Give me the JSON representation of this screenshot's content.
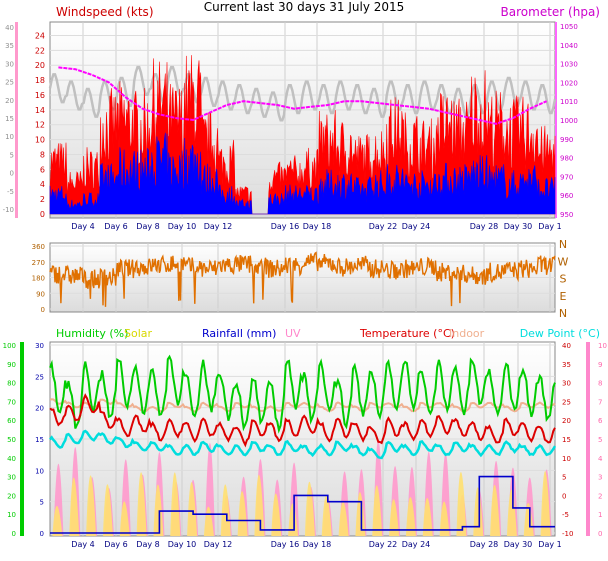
{
  "title": "Current last 30 days 31 July 2015",
  "x_ticks": [
    "Day 4",
    "Day 6",
    "Day 8",
    "Day 10",
    "Day 12",
    "Day 16",
    "Day 18",
    "Day 22",
    "Day 24",
    "Day 28",
    "Day 30",
    "Day 1"
  ],
  "chart_data": [
    {
      "type": "line",
      "name_label": "",
      "left_axis_label": "Windspeed (kts)",
      "right_axis_label": "Barometer (hpa)",
      "colors": {
        "gust": "#ff0000",
        "avg": "#0000ff",
        "direction_avg": "#c0c0c0",
        "barometer": "#ff00ff",
        "left_axis": "#cc0000",
        "right_axis": "#cc00cc"
      },
      "left_ticks_kts": [
        24,
        22,
        20,
        18,
        16,
        14,
        12,
        10,
        8,
        6,
        4,
        2,
        0
      ],
      "left_ticks_outer": [
        40,
        35,
        30,
        25,
        20,
        15,
        10,
        5,
        0,
        -5,
        -10
      ],
      "right_ticks_hpa": [
        1050,
        1040,
        1030,
        1020,
        1010,
        1000,
        990,
        980,
        970,
        960,
        950
      ],
      "ylim_kts": [
        0,
        25
      ],
      "ylim_hpa": [
        950,
        1050
      ],
      "barometer_hpa": [
        1028,
        1027,
        1024,
        1020,
        1012,
        1006,
        1003,
        1001,
        1000,
        1004,
        1008,
        1010,
        1009,
        1008,
        1006,
        1007,
        1008,
        1010,
        1010,
        1009,
        1008,
        1007,
        1006,
        1004,
        1002,
        1000,
        998,
        1001,
        1006,
        1010
      ],
      "gust_kts_daily_max": [
        10,
        6,
        9,
        17,
        18,
        17,
        21,
        18,
        22,
        14,
        10,
        4,
        0,
        7,
        8,
        9,
        14,
        13,
        11,
        12,
        16,
        14,
        13,
        17,
        16,
        20,
        17,
        16,
        16,
        12
      ],
      "avg_kts_daily_max": [
        4,
        2,
        3,
        7,
        9,
        9,
        11,
        9,
        11,
        7,
        4,
        2,
        0,
        3,
        4,
        4,
        6,
        6,
        5,
        6,
        7,
        6,
        6,
        7,
        7,
        8,
        7,
        6,
        7,
        5
      ],
      "temp_c_outer_band": [
        24,
        22,
        20,
        22,
        23,
        26,
        24,
        26,
        24,
        23,
        22,
        21,
        20,
        19,
        21,
        22,
        21,
        22,
        21,
        20,
        22,
        21,
        22,
        21,
        20,
        21,
        22,
        23,
        22,
        21
      ]
    },
    {
      "type": "line",
      "name_label": "",
      "compass_labels": [
        "N",
        "W",
        "S",
        "E",
        "N"
      ],
      "left_ticks_deg": [
        360,
        270,
        180,
        90,
        0
      ],
      "colors": {
        "direction": "#e07000"
      },
      "direction_deg_daily": [
        200,
        190,
        170,
        180,
        230,
        240,
        250,
        260,
        240,
        230,
        250,
        255,
        240,
        230,
        250,
        270,
        260,
        240,
        250,
        230,
        220,
        230,
        240,
        210,
        200,
        190,
        210,
        220,
        230,
        250
      ]
    },
    {
      "type": "line",
      "labels": {
        "humidity": "Humidity (%)",
        "solar": "Solar",
        "rainfall": "Rainfall (mm)",
        "uv": "UV",
        "temperature": "Temperature (°C)",
        "indoor": "Indoor",
        "dew_point": "Dew Point (°C)"
      },
      "colors": {
        "humidity": "#00cc00",
        "solar": "#d8d800",
        "rainfall": "#0000cc",
        "uv": "#ff88cc",
        "temperature": "#dd0000",
        "indoor": "#f0b090",
        "dew_point": "#00dddd"
      },
      "left_ticks_humidity": [
        100,
        90,
        80,
        70,
        60,
        50,
        40,
        30,
        20,
        10,
        0
      ],
      "left_ticks_rain": [
        30,
        25,
        20,
        15,
        10,
        5,
        0
      ],
      "right_ticks_temp": [
        40,
        35,
        30,
        25,
        20,
        15,
        10,
        5,
        0,
        -5,
        -10
      ],
      "right_ticks_uv": [
        10,
        9,
        8,
        7,
        6,
        5,
        4,
        3,
        2,
        1,
        0
      ],
      "humidity_pct_daily_max": [
        88,
        80,
        90,
        85,
        92,
        88,
        86,
        94,
        84,
        90,
        86,
        80,
        82,
        80,
        92,
        84,
        90,
        82,
        88,
        86,
        90,
        92,
        86,
        90,
        88,
        92,
        86,
        90,
        88,
        84
      ],
      "temperature_c_daily": [
        21,
        22,
        24,
        20,
        18,
        19,
        17,
        18,
        17,
        18,
        17,
        16,
        18,
        17,
        18,
        19,
        17,
        18,
        17,
        16,
        18,
        17,
        18,
        19,
        18,
        17,
        16,
        18,
        17,
        16
      ],
      "dew_point_c_daily": [
        14,
        15,
        16,
        15,
        14,
        13,
        13,
        12,
        12,
        13,
        12,
        12,
        13,
        12,
        13,
        12,
        12,
        13,
        12,
        11,
        13,
        12,
        13,
        12,
        13,
        12,
        12,
        13,
        12,
        12
      ],
      "indoor_c_daily": [
        25,
        24,
        24,
        25,
        24,
        23,
        23,
        24,
        23,
        24,
        23,
        24,
        23,
        23,
        24,
        24,
        23,
        24,
        23,
        24,
        24,
        23,
        24,
        24,
        23,
        24,
        24,
        23,
        24,
        24
      ],
      "rainfall_mm_cumulative_steps": [
        {
          "day": 1,
          "mm": 0
        },
        {
          "day": 7,
          "mm": 3.5
        },
        {
          "day": 9,
          "mm": 3
        },
        {
          "day": 11,
          "mm": 2
        },
        {
          "day": 13,
          "mm": 0.5
        },
        {
          "day": 15,
          "mm": 6
        },
        {
          "day": 17,
          "mm": 5
        },
        {
          "day": 19,
          "mm": 0.5
        },
        {
          "day": 25,
          "mm": 1
        },
        {
          "day": 26,
          "mm": 9
        },
        {
          "day": 28,
          "mm": 4
        },
        {
          "day": 29,
          "mm": 1
        }
      ]
    }
  ]
}
